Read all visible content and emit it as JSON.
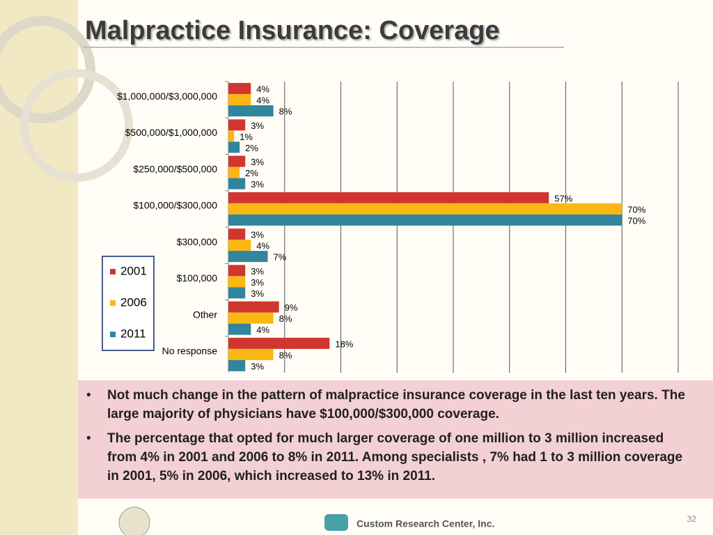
{
  "chart_data": {
    "type": "bar",
    "orientation": "horizontal",
    "title": "Malpractice Insurance: Coverage",
    "categories": [
      "$1,000,000/$3,000,000",
      "$500,000/$1,000,000",
      "$250,000/$500,000",
      "$100,000/$300,000",
      "$300,000",
      "$100,000",
      "Other",
      "No response"
    ],
    "series": [
      {
        "name": "2001",
        "color": "#d0362f",
        "values": [
          4,
          3,
          3,
          57,
          3,
          3,
          9,
          18
        ],
        "value_labels": [
          "4%",
          "3%",
          "3%",
          "57%",
          "3%",
          "3%",
          "9%",
          "18%"
        ]
      },
      {
        "name": "2006",
        "color": "#fbb713",
        "values": [
          4,
          1,
          2,
          70,
          4,
          3,
          8,
          8
        ],
        "value_labels": [
          "4%",
          "1%",
          "2%",
          "70%",
          "4%",
          "3%",
          "8%",
          "8%"
        ]
      },
      {
        "name": "2011",
        "color": "#31859c",
        "values": [
          8,
          2,
          3,
          70,
          7,
          3,
          4,
          3
        ],
        "value_labels": [
          "8%",
          "2%",
          "3%",
          "70%",
          "7%",
          "3%",
          "4%",
          "3%"
        ]
      }
    ],
    "xlim": [
      0,
      80
    ],
    "xticks": [
      0,
      10,
      20,
      30,
      40,
      50,
      60,
      70,
      80
    ],
    "grid": true,
    "legend": "left"
  },
  "bullets": [
    "Not much change in the pattern of malpractice insurance coverage in the last ten years. The large majority of physicians have $100,000/$300,000 coverage.",
    "The percentage that opted for much larger coverage of one million to 3 million increased from 4% in 2001 and 2006 to 8% in 2011. Among specialists , 7% had 1 to 3 million coverage in 2001, 5%  in 2006,  which increased to 13% in 2011."
  ],
  "footer": {
    "company": "Custom Research Center, Inc.",
    "page_number": "32"
  }
}
